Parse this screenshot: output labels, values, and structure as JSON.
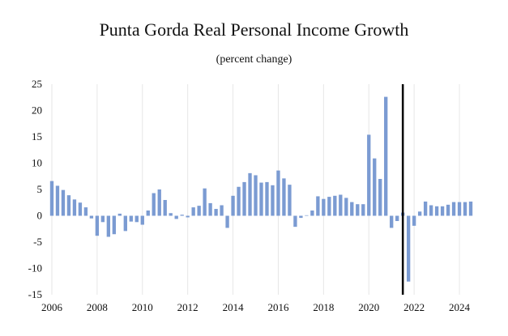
{
  "chart_data": {
    "type": "bar",
    "title": "Punta Gorda Real Personal Income Growth",
    "subtitle": "(percent change)",
    "xlabel": "",
    "ylabel": "",
    "ylim": [
      -15,
      25
    ],
    "yticks": [
      25,
      20,
      15,
      10,
      5,
      0,
      -5,
      -10,
      -15
    ],
    "xticks": [
      2006,
      2008,
      2010,
      2012,
      2014,
      2016,
      2018,
      2020,
      2022,
      2024
    ],
    "xlim": [
      2005.75,
      2024.75
    ],
    "grid": "vertical",
    "bar_color": "#7b9bd2",
    "vline_x": 2021.5,
    "vline_color": "#000000",
    "series": [
      {
        "x": [
          2006.0,
          2006.25,
          2006.5,
          2006.75,
          2007.0,
          2007.25,
          2007.5,
          2007.75,
          2008.0,
          2008.25,
          2008.5,
          2008.75,
          2009.0,
          2009.25,
          2009.5,
          2009.75,
          2010.0,
          2010.25,
          2010.5,
          2010.75,
          2011.0,
          2011.25,
          2011.5,
          2011.75,
          2012.0,
          2012.25,
          2012.5,
          2012.75,
          2013.0,
          2013.25,
          2013.5,
          2013.75,
          2014.0,
          2014.25,
          2014.5,
          2014.75,
          2015.0,
          2015.25,
          2015.5,
          2015.75,
          2016.0,
          2016.25,
          2016.5,
          2016.75,
          2017.0,
          2017.25,
          2017.5,
          2017.75,
          2018.0,
          2018.25,
          2018.5,
          2018.75,
          2019.0,
          2019.25,
          2019.5,
          2019.75,
          2020.0,
          2020.25,
          2020.5,
          2020.75,
          2021.0,
          2021.25,
          2021.5,
          2021.75,
          2022.0,
          2022.25,
          2022.5,
          2022.75,
          2023.0,
          2023.25,
          2023.5,
          2023.75,
          2024.0,
          2024.25,
          2024.5
        ],
        "values": [
          6.6,
          5.7,
          4.9,
          3.9,
          3.1,
          2.5,
          1.6,
          -0.5,
          -3.8,
          -1.2,
          -4.0,
          -3.5,
          0.4,
          -2.9,
          -1.1,
          -1.2,
          -1.7,
          1.0,
          4.3,
          5.0,
          3.0,
          0.5,
          -0.6,
          0.2,
          -0.3,
          1.6,
          1.9,
          5.2,
          2.4,
          1.3,
          2.0,
          -2.3,
          3.8,
          5.5,
          6.4,
          8.1,
          7.7,
          6.3,
          6.4,
          5.8,
          8.6,
          7.1,
          5.9,
          -2.1,
          -0.4,
          0.1,
          1.0,
          3.7,
          3.2,
          3.6,
          3.8,
          4.0,
          3.4,
          2.6,
          2.2,
          2.2,
          15.4,
          10.9,
          7.0,
          22.6,
          -2.3,
          -1.0,
          0.6,
          -12.5,
          -1.9,
          0.8,
          2.7,
          2.0,
          1.8,
          1.8,
          2.1,
          2.6,
          2.6,
          2.6,
          2.7
        ]
      }
    ]
  }
}
